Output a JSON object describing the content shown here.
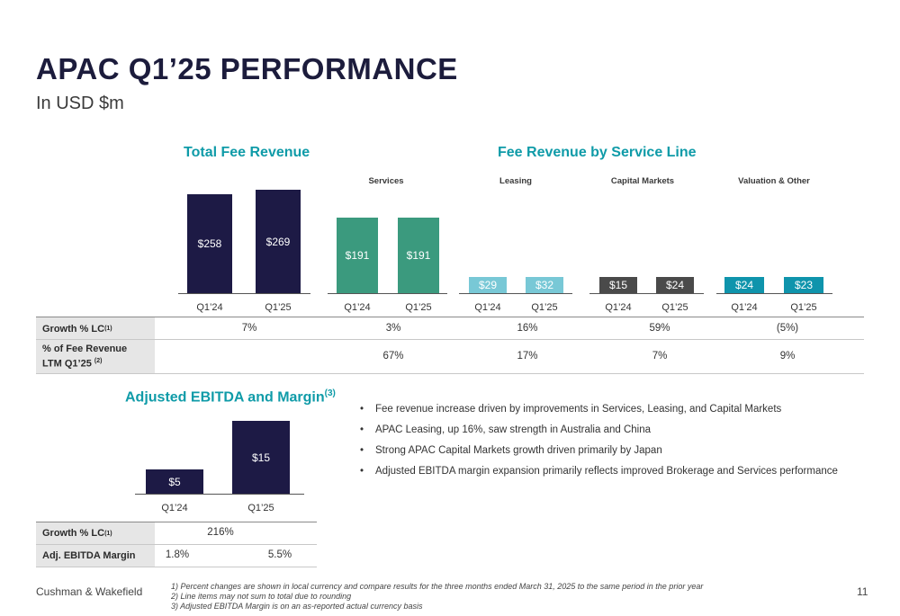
{
  "header": {
    "title": "APAC Q1’25  PERFORMANCE",
    "subtitle": "In USD $m"
  },
  "sections": {
    "total_fee_revenue": "Total Fee Revenue",
    "fee_by_service_line": "Fee Revenue by Service Line",
    "adjusted_ebitda": "Adjusted EBITDA and Margin",
    "adjusted_ebitda_sup": "(3)"
  },
  "service_lines": [
    "Services",
    "Leasing",
    "Capital Markets",
    "Valuation & Other"
  ],
  "colors": {
    "navy": "#1d1a45",
    "services": "#3b9a7e",
    "leasing": "#78c8d6",
    "capital_markets": "#4a4a4a",
    "valuation": "#0f94ac",
    "accent": "#0f9ba8"
  },
  "chart_data": [
    {
      "type": "bar",
      "title": "Total Fee Revenue",
      "categories": [
        "Q1’24",
        "Q1’25"
      ],
      "values": [
        258,
        269
      ],
      "labels": [
        "$258",
        "$269"
      ]
    },
    {
      "type": "bar",
      "title": "Fee Revenue by Service Line",
      "categories": [
        "Q1’24",
        "Q1’25"
      ],
      "series": [
        {
          "name": "Services",
          "values": [
            191,
            191
          ],
          "labels": [
            "$191",
            "$191"
          ]
        },
        {
          "name": "Leasing",
          "values": [
            29,
            32
          ],
          "labels": [
            "$29",
            "$32"
          ]
        },
        {
          "name": "Capital Markets",
          "values": [
            15,
            24
          ],
          "labels": [
            "$15",
            "$24"
          ]
        },
        {
          "name": "Valuation & Other",
          "values": [
            24,
            23
          ],
          "labels": [
            "$24",
            "$23"
          ]
        }
      ]
    },
    {
      "type": "bar",
      "title": "Adjusted EBITDA and Margin",
      "categories": [
        "Q1’24",
        "Q1’25"
      ],
      "values": [
        5,
        15
      ],
      "labels": [
        "$5",
        "$15"
      ]
    }
  ],
  "xlabels": [
    "Q1’24",
    "Q1’25"
  ],
  "table_top": {
    "growth_label": "Growth % LC",
    "growth_sup": "(1)",
    "growth_values": [
      "7%",
      "3%",
      "16%",
      "59%",
      "(5%)"
    ],
    "pct_label_line1": "% of Fee Revenue",
    "pct_label_line2": "LTM Q1’25",
    "pct_sup": "(2)",
    "pct_values": [
      "67%",
      "17%",
      "7%",
      "9%"
    ]
  },
  "table_bottom": {
    "growth_label": "Growth % LC",
    "growth_sup": "(1)",
    "growth_value": "216%",
    "margin_label": "Adj. EBITDA Margin",
    "margin_values": [
      "1.8%",
      "5.5%"
    ]
  },
  "bullets": [
    "Fee revenue increase driven by improvements in Services, Leasing, and Capital Markets",
    "APAC Leasing, up 16%, saw strength in Australia and China",
    "Strong APAC Capital Markets growth driven primarily by Japan",
    "Adjusted EBITDA margin expansion primarily reflects improved Brokerage and Services performance"
  ],
  "footer": {
    "company": "Cushman & Wakefield",
    "notes": [
      "1)    Percent changes are shown in local currency and compare results for the three months ended March 31, 2025 to the same period in the prior year",
      "2)    Line items may not sum to total due to rounding",
      "3)    Adjusted EBITDA Margin is on an as-reported actual currency basis"
    ],
    "page": "11"
  }
}
